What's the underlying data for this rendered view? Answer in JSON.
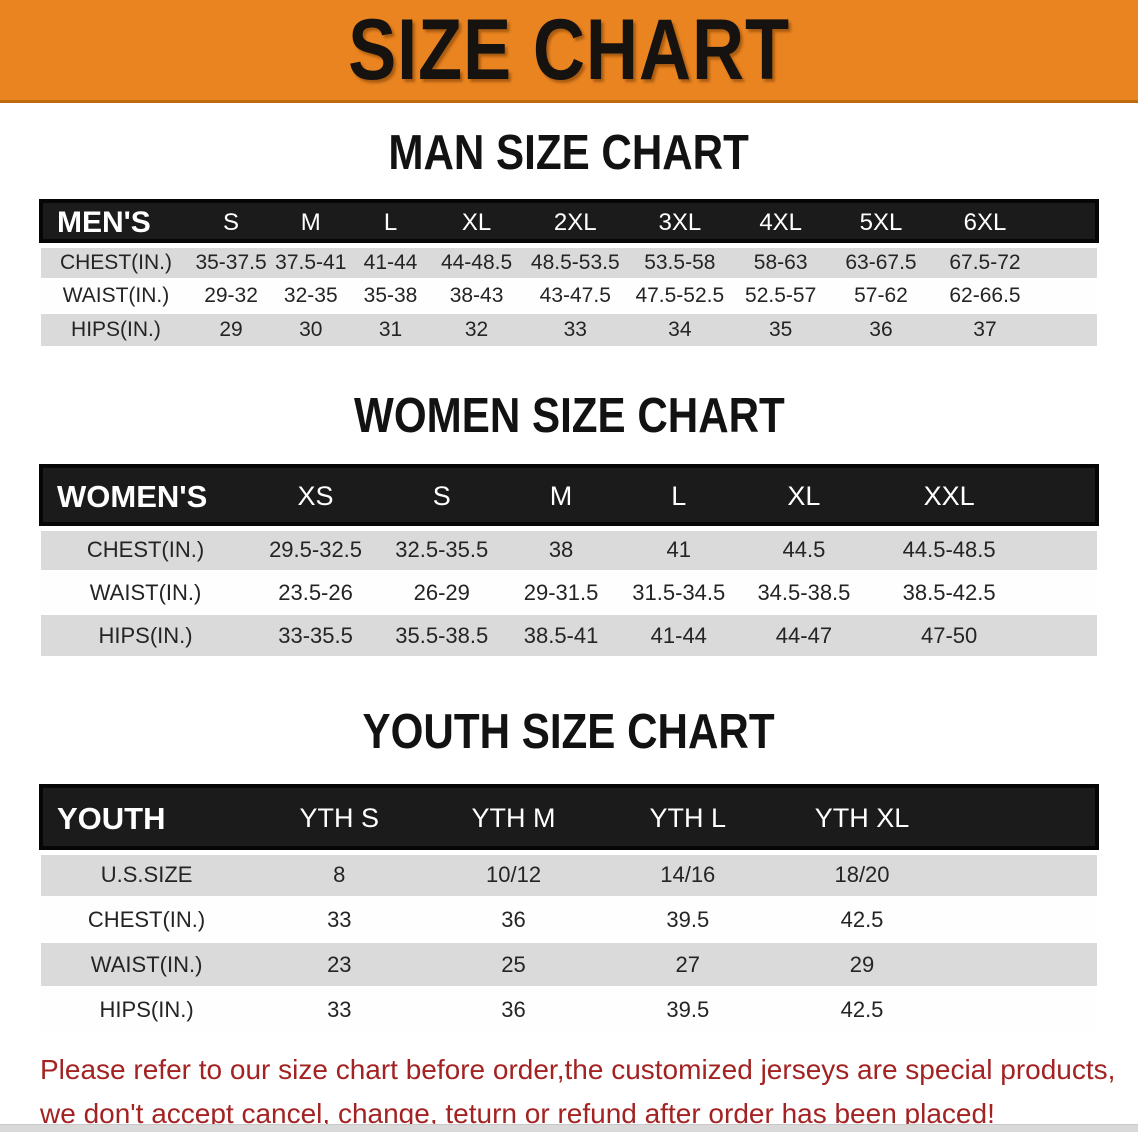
{
  "page": {
    "banner_title": "SIZE CHART",
    "colors": {
      "banner_bg": "#EA8420",
      "header_band": "#1B1B1B",
      "row_gray": "#DADADA",
      "note_red": "#A32323"
    }
  },
  "men": {
    "section_title": "MAN SIZE CHART",
    "header_label": "MEN'S",
    "sizes": [
      "S",
      "M",
      "L",
      "XL",
      "2XL",
      "3XL",
      "4XL",
      "5XL",
      "6XL"
    ],
    "rows": [
      {
        "label": "CHEST(IN.)",
        "values": [
          "35-37.5",
          "37.5-41",
          "41-44",
          "44-48.5",
          "48.5-53.5",
          "53.5-58",
          "58-63",
          "63-67.5",
          "67.5-72"
        ]
      },
      {
        "label": "WAIST(IN.)",
        "values": [
          "29-32",
          "32-35",
          "35-38",
          "38-43",
          "43-47.5",
          "47.5-52.5",
          "52.5-57",
          "57-62",
          "62-66.5"
        ]
      },
      {
        "label": "HIPS(IN.)",
        "values": [
          "29",
          "30",
          "31",
          "32",
          "33",
          "34",
          "35",
          "36",
          "37"
        ]
      }
    ]
  },
  "women": {
    "section_title": "WOMEN SIZE CHART",
    "header_label": "WOMEN'S",
    "sizes": [
      "XS",
      "S",
      "M",
      "L",
      "XL",
      "XXL"
    ],
    "rows": [
      {
        "label": "CHEST(IN.)",
        "values": [
          "29.5-32.5",
          "32.5-35.5",
          "38",
          "41",
          "44.5",
          "44.5-48.5"
        ]
      },
      {
        "label": "WAIST(IN.)",
        "values": [
          "23.5-26",
          "26-29",
          "29-31.5",
          "31.5-34.5",
          "34.5-38.5",
          "38.5-42.5"
        ]
      },
      {
        "label": "HIPS(IN.)",
        "values": [
          "33-35.5",
          "35.5-38.5",
          "38.5-41",
          "41-44",
          "44-47",
          "47-50"
        ]
      }
    ]
  },
  "youth": {
    "section_title": "YOUTH SIZE CHART",
    "header_label": "YOUTH",
    "sizes": [
      "YTH S",
      "YTH M",
      "YTH L",
      "YTH XL"
    ],
    "rows": [
      {
        "label": "U.S.SIZE",
        "values": [
          "8",
          "10/12",
          "14/16",
          "18/20"
        ]
      },
      {
        "label": "CHEST(IN.)",
        "values": [
          "33",
          "36",
          "39.5",
          "42.5"
        ]
      },
      {
        "label": "WAIST(IN.)",
        "values": [
          "23",
          "25",
          "27",
          "29"
        ]
      },
      {
        "label": "HIPS(IN.)",
        "values": [
          "33",
          "36",
          "39.5",
          "42.5"
        ]
      }
    ]
  },
  "note": {
    "line1": "Please refer to our size chart before order,the customized jerseys are special products,",
    "line2": "we don't accept cancel, change, teturn or refund after order has been placed!"
  }
}
